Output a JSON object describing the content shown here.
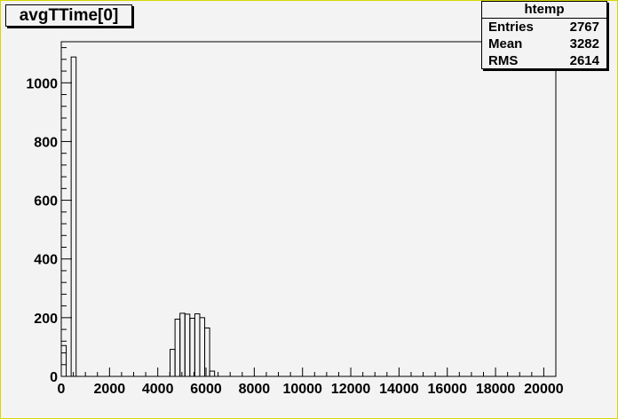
{
  "chart_data": {
    "type": "histogram",
    "title": "avgTTime[0]",
    "xlim": [
      0,
      20500
    ],
    "ylim": [
      0,
      1140
    ],
    "x_ticks": [
      0,
      2000,
      4000,
      6000,
      8000,
      10000,
      12000,
      14000,
      16000,
      18000,
      20000
    ],
    "x_tick_labels": [
      "0",
      "2000",
      "4000",
      "6000",
      "8000",
      "10000",
      "12000",
      "14000",
      "16000",
      "18000",
      "20000"
    ],
    "y_ticks": [
      0,
      200,
      400,
      600,
      800,
      1000
    ],
    "y_tick_labels": [
      "0",
      "200",
      "400",
      "600",
      "800",
      "1000"
    ],
    "bin_width": 205,
    "bins": [
      {
        "x_low": 0,
        "count": 105
      },
      {
        "x_low": 205,
        "count": 0
      },
      {
        "x_low": 410,
        "count": 1088
      },
      {
        "x_low": 4510,
        "count": 92
      },
      {
        "x_low": 4715,
        "count": 195
      },
      {
        "x_low": 4920,
        "count": 215
      },
      {
        "x_low": 5125,
        "count": 212
      },
      {
        "x_low": 5330,
        "count": 198
      },
      {
        "x_low": 5535,
        "count": 213
      },
      {
        "x_low": 5740,
        "count": 200
      },
      {
        "x_low": 5945,
        "count": 165
      },
      {
        "x_low": 6150,
        "count": 18
      }
    ],
    "stats": {
      "title": "htemp",
      "rows": [
        {
          "label": "Entries",
          "value": "2767"
        },
        {
          "label": "Mean",
          "value": "3282"
        },
        {
          "label": "RMS",
          "value": "2614"
        }
      ]
    },
    "grid": false
  }
}
